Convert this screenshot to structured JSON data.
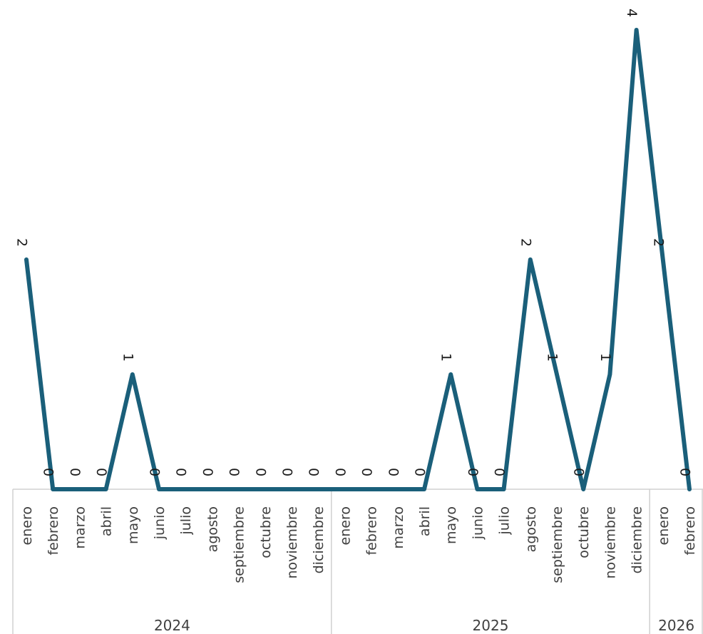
{
  "chart_data": {
    "type": "line",
    "categories": [
      {
        "year": "2024",
        "month": "enero"
      },
      {
        "year": "2024",
        "month": "febrero"
      },
      {
        "year": "2024",
        "month": "marzo"
      },
      {
        "year": "2024",
        "month": "abril"
      },
      {
        "year": "2024",
        "month": "mayo"
      },
      {
        "year": "2024",
        "month": "junio"
      },
      {
        "year": "2024",
        "month": "julio"
      },
      {
        "year": "2024",
        "month": "agosto"
      },
      {
        "year": "2024",
        "month": "septiembre"
      },
      {
        "year": "2024",
        "month": "octubre"
      },
      {
        "year": "2024",
        "month": "noviembre"
      },
      {
        "year": "2024",
        "month": "diciembre"
      },
      {
        "year": "2025",
        "month": "enero"
      },
      {
        "year": "2025",
        "month": "febrero"
      },
      {
        "year": "2025",
        "month": "marzo"
      },
      {
        "year": "2025",
        "month": "abril"
      },
      {
        "year": "2025",
        "month": "mayo"
      },
      {
        "year": "2025",
        "month": "junio"
      },
      {
        "year": "2025",
        "month": "julio"
      },
      {
        "year": "2025",
        "month": "agosto"
      },
      {
        "year": "2025",
        "month": "septiembre"
      },
      {
        "year": "2025",
        "month": "octubre"
      },
      {
        "year": "2025",
        "month": "noviembre"
      },
      {
        "year": "2025",
        "month": "diciembre"
      },
      {
        "year": "2026",
        "month": "enero"
      },
      {
        "year": "2026",
        "month": "febrero"
      }
    ],
    "years": [
      "2024",
      "2025",
      "2026"
    ],
    "series": [
      {
        "values": [
          2,
          0,
          0,
          0,
          1,
          0,
          0,
          0,
          0,
          0,
          0,
          0,
          0,
          0,
          0,
          0,
          1,
          0,
          0,
          2,
          1,
          0,
          1,
          4,
          2,
          0
        ]
      }
    ],
    "ylim": [
      0,
      4
    ],
    "data_labels": true,
    "data_label_rotation": "90deg",
    "grid": false,
    "legend": "none",
    "colors": {
      "line": "#1a5f7a",
      "axis": "#d0d0d0",
      "text": "#404040"
    }
  }
}
